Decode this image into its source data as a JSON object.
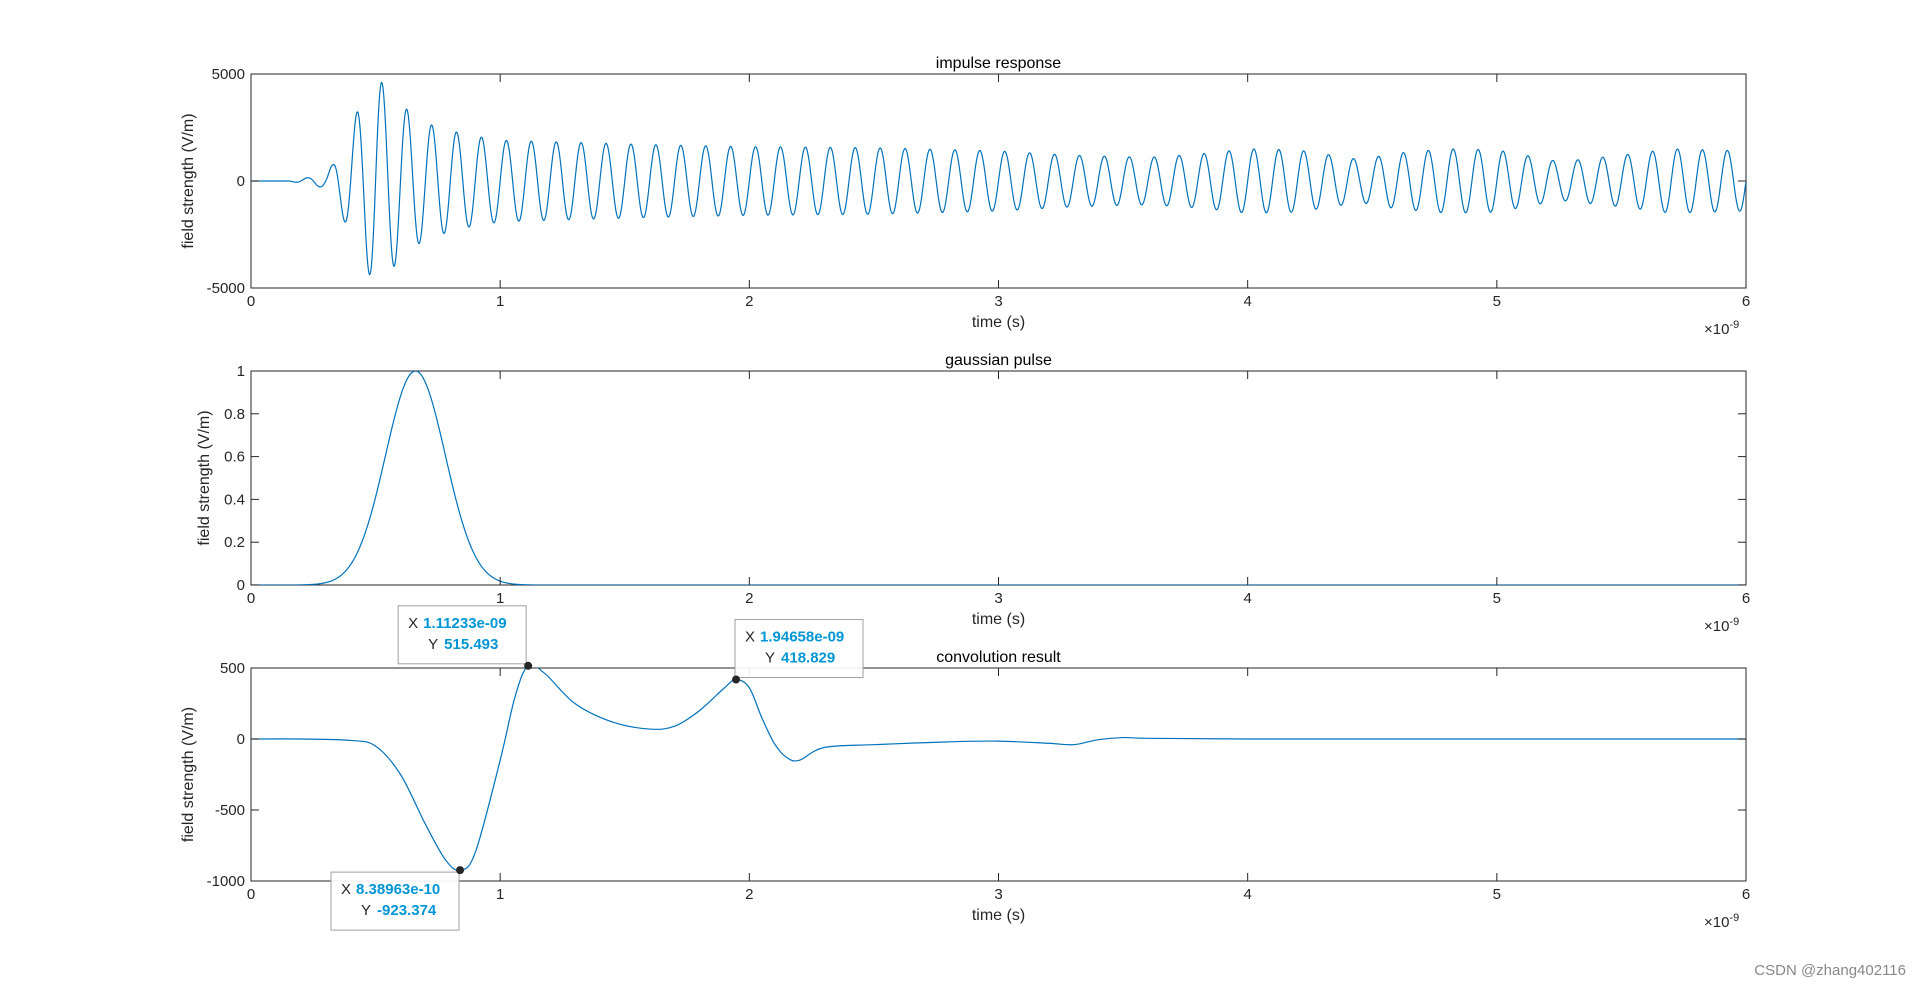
{
  "figure": {
    "background": "#ffffff",
    "line_color": "#0072BD",
    "tip_value_color": "#0096D6"
  },
  "watermark": "CSDN @zhang402116",
  "chart_data": [
    {
      "type": "line",
      "title": "impulse response",
      "xlabel": "time (s)",
      "ylabel": "field strength (V/m)",
      "x_exponent": "×10",
      "x_exponent_power": "-9",
      "xlim": [
        0,
        6
      ],
      "ylim": [
        -5000,
        5000
      ],
      "xticks": [
        "0",
        "1",
        "2",
        "3",
        "4",
        "5",
        "6"
      ],
      "yticks": [
        "-5000",
        "0",
        "5000"
      ],
      "ytick_values": [
        -5000,
        0,
        5000
      ],
      "grid": false,
      "series": [
        {
          "color": "#0072BD",
          "description": "oscillating signal ~10 GHz; quiet before 0.15 ns, small ripple to 0.35 ns, peak about ±5000 near 0.5 ns, decaying envelope to roughly ±1600 by 1 ns and about ±1000 to ±1500 thereafter with slow beat modulation",
          "oscillation_period": 0.1,
          "envelope": [
            [
              0,
              0
            ],
            [
              0.15,
              0
            ],
            [
              0.18,
              60
            ],
            [
              0.25,
              200
            ],
            [
              0.3,
              350
            ],
            [
              0.33,
              800
            ],
            [
              0.38,
              2000
            ],
            [
              0.44,
              3600
            ],
            [
              0.5,
              4900
            ],
            [
              0.55,
              4300
            ],
            [
              0.62,
              3400
            ],
            [
              0.7,
              2700
            ],
            [
              0.85,
              2200
            ],
            [
              1.0,
              1900
            ],
            [
              1.3,
              1800
            ],
            [
              1.6,
              1700
            ],
            [
              2.0,
              1600
            ],
            [
              2.5,
              1550
            ],
            [
              3.0,
              1400
            ],
            [
              3.3,
              1200
            ],
            [
              3.6,
              1100
            ],
            [
              3.8,
              1250
            ],
            [
              4.0,
              1500
            ],
            [
              4.2,
              1450
            ],
            [
              4.45,
              1000
            ],
            [
              4.6,
              1300
            ],
            [
              4.8,
              1500
            ],
            [
              5.0,
              1450
            ],
            [
              5.25,
              900
            ],
            [
              5.5,
              1200
            ],
            [
              5.7,
              1500
            ],
            [
              6.0,
              1400
            ]
          ]
        }
      ]
    },
    {
      "type": "line",
      "title": "gaussian pulse",
      "xlabel": "time (s)",
      "ylabel": "field strength (V/m)",
      "x_exponent": "×10",
      "x_exponent_power": "-9",
      "xlim": [
        0,
        6
      ],
      "ylim": [
        0,
        1
      ],
      "xticks": [
        "0",
        "1",
        "2",
        "3",
        "4",
        "5",
        "6"
      ],
      "yticks": [
        "0",
        "0.2",
        "0.4",
        "0.6",
        "0.8",
        "1"
      ],
      "ytick_values": [
        0,
        0.2,
        0.4,
        0.6,
        0.8,
        1
      ],
      "grid": false,
      "series": [
        {
          "color": "#0072BD",
          "gaussian": {
            "center": 0.66,
            "sigma": 0.12,
            "amplitude": 1
          }
        }
      ]
    },
    {
      "type": "line",
      "title": "convolution result",
      "xlabel": "time (s)",
      "ylabel": "field strength (V/m)",
      "x_exponent": "×10",
      "x_exponent_power": "-9",
      "xlim": [
        0,
        6
      ],
      "ylim": [
        -1000,
        500
      ],
      "xticks": [
        "0",
        "1",
        "2",
        "3",
        "4",
        "5",
        "6"
      ],
      "yticks": [
        "-1000",
        "-500",
        "0",
        "500"
      ],
      "ytick_values": [
        -1000,
        -500,
        0,
        500
      ],
      "grid": false,
      "series": [
        {
          "color": "#0072BD",
          "x": [
            0,
            0.2,
            0.4,
            0.5,
            0.6,
            0.7,
            0.78,
            0.839,
            0.9,
            1.0,
            1.06,
            1.11233,
            1.18,
            1.3,
            1.45,
            1.6,
            1.7,
            1.8,
            1.9,
            1.94658,
            2.0,
            2.05,
            2.1,
            2.15,
            2.2,
            2.3,
            2.5,
            2.8,
            3.0,
            3.2,
            3.3,
            3.4,
            3.5,
            3.6,
            4.0,
            5.0,
            6.0
          ],
          "y": [
            0,
            0,
            -10,
            -50,
            -250,
            -600,
            -850,
            -923.374,
            -800,
            -150,
            300,
            515.493,
            460,
            250,
            120,
            70,
            90,
            200,
            360,
            418.829,
            360,
            150,
            -30,
            -130,
            -150,
            -60,
            -40,
            -20,
            -15,
            -30,
            -40,
            -5,
            10,
            5,
            0,
            0,
            0
          ]
        }
      ],
      "datatips": [
        {
          "x_label": "X",
          "x_value": "1.11233e-09",
          "y_label": "Y",
          "y_value": "515.493",
          "x": 1.11233,
          "y": 515.493,
          "placement": "above-left"
        },
        {
          "x_label": "X",
          "x_value": "1.94658e-09",
          "y_label": "Y",
          "y_value": "418.829",
          "x": 1.94658,
          "y": 418.829,
          "placement": "above-right"
        },
        {
          "x_label": "X",
          "x_value": "8.38963e-10",
          "y_label": "Y",
          "y_value": "-923.374",
          "x": 0.838963,
          "y": -923.374,
          "placement": "below-left"
        }
      ]
    }
  ]
}
